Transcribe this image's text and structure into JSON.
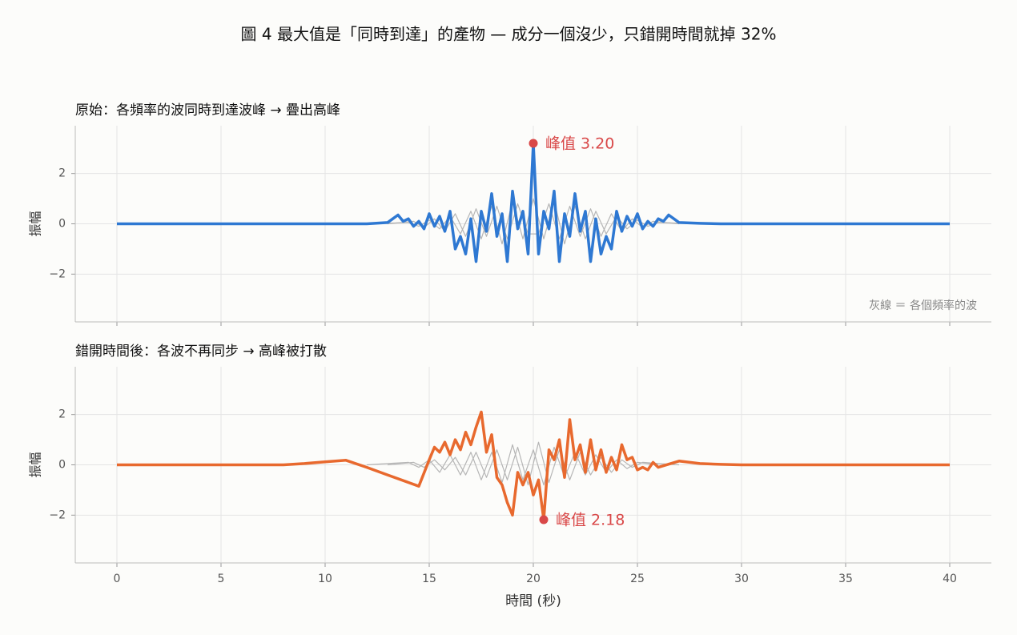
{
  "title": "圖 4  最大值是「同時到達」的產物 — 成分一個沒少，只錯開時間就掉 32%",
  "chart_data": [
    {
      "type": "line",
      "title": "原始：各頻率的波同時到達波峰 → 疊出高峰",
      "ylabel": "振幅",
      "xlim": [
        -2,
        42
      ],
      "ylim": [
        -3.9,
        3.9
      ],
      "xticks": [
        0,
        5,
        10,
        15,
        20,
        25,
        30,
        35,
        40
      ],
      "yticks": [
        {
          "value": -2,
          "label": "−2"
        },
        0,
        2
      ],
      "grid": true,
      "series": [
        {
          "color": "#b5b5b5",
          "x": [
            12,
            14,
            14.5,
            15,
            15.5,
            16,
            16.5,
            17,
            17.5,
            18,
            18.5,
            19,
            19.5,
            20,
            20.5,
            21,
            21.5,
            22,
            22.5,
            23,
            23.5,
            24,
            24.5,
            25,
            25.5,
            26,
            28
          ],
          "values": [
            0,
            0.05,
            -0.1,
            0.15,
            -0.2,
            0.3,
            -0.4,
            0.5,
            -0.6,
            0.7,
            -0.8,
            0.9,
            -0.6,
            1.0,
            -0.6,
            0.9,
            -0.8,
            0.7,
            -0.6,
            0.5,
            -0.4,
            0.3,
            -0.2,
            0.15,
            -0.1,
            0.05,
            0
          ]
        },
        {
          "color": "#b5b5b5",
          "x": [
            13,
            14.25,
            14.75,
            15.25,
            15.75,
            16.25,
            16.75,
            17.25,
            17.75,
            18.25,
            18.75,
            19.25,
            19.75,
            20.25,
            20.75,
            21.25,
            21.75,
            22.25,
            22.75,
            23.25,
            23.75,
            24.25,
            24.75,
            25.25,
            25.75,
            27
          ],
          "values": [
            0,
            0.1,
            -0.15,
            0.2,
            -0.3,
            0.4,
            -0.5,
            0.6,
            -0.5,
            0.7,
            -0.6,
            0.8,
            -0.4,
            -0.4,
            0.8,
            -0.6,
            0.7,
            -0.5,
            0.6,
            -0.5,
            0.4,
            -0.3,
            0.2,
            -0.15,
            0.1,
            0
          ]
        },
        {
          "color": "#2e78d2",
          "x": [
            0,
            5,
            10,
            12,
            13,
            13.25,
            13.5,
            13.75,
            14,
            14.25,
            14.5,
            14.75,
            15,
            15.25,
            15.5,
            15.75,
            16,
            16.25,
            16.5,
            16.75,
            17,
            17.25,
            17.5,
            17.75,
            18,
            18.25,
            18.5,
            18.75,
            19,
            19.25,
            19.5,
            19.75,
            20,
            20.25,
            20.5,
            20.75,
            21,
            21.25,
            21.5,
            21.75,
            22,
            22.25,
            22.5,
            22.75,
            23,
            23.25,
            23.5,
            23.75,
            24,
            24.25,
            24.5,
            24.75,
            25,
            25.25,
            25.5,
            25.75,
            26,
            26.25,
            26.5,
            26.75,
            27,
            28,
            29,
            30,
            35,
            40
          ],
          "values": [
            0,
            0,
            0,
            0,
            0.05,
            0.2,
            0.35,
            0.1,
            0.2,
            -0.1,
            0.1,
            -0.2,
            0.4,
            -0.1,
            0.3,
            -0.3,
            0.5,
            -1.0,
            -0.5,
            -1.2,
            0.2,
            -1.5,
            0.5,
            -0.3,
            1.2,
            -0.5,
            0.4,
            -1.5,
            1.3,
            -0.2,
            0.5,
            -1.2,
            3.2,
            -1.2,
            0.5,
            -0.2,
            1.3,
            -1.5,
            0.4,
            -0.5,
            1.2,
            -0.3,
            0.5,
            -1.5,
            0.2,
            -1.2,
            -0.5,
            -1.0,
            0.5,
            -0.3,
            0.3,
            -0.1,
            0.4,
            -0.2,
            0.1,
            -0.1,
            0.2,
            0.1,
            0.35,
            0.2,
            0.05,
            0.02,
            0,
            0,
            0,
            0
          ]
        }
      ],
      "annotations": [
        {
          "text": "峰值 3.20",
          "x": 20,
          "y": 3.2,
          "color": "#d94848"
        },
        {
          "text": "灰線 ＝ 各個頻率的波"
        }
      ]
    },
    {
      "type": "line",
      "title": "錯開時間後：各波不再同步 → 高峰被打散",
      "ylabel": "振幅",
      "xlabel": "時間 (秒)",
      "xlim": [
        -2,
        42
      ],
      "ylim": [
        -3.9,
        3.9
      ],
      "xticks": [
        0,
        5,
        10,
        15,
        20,
        25,
        30,
        35,
        40
      ],
      "yticks": [
        {
          "value": -2,
          "label": "−2"
        },
        0,
        2
      ],
      "grid": true,
      "series": [
        {
          "color": "#b5b5b5",
          "x": [
            12,
            13,
            14,
            14.5,
            15,
            15.5,
            16,
            16.5,
            17,
            17.5,
            18,
            18.5,
            19,
            19.5,
            20,
            20.5,
            21,
            21.5,
            22,
            22.5,
            23,
            23.5,
            24,
            24.5,
            25,
            26
          ],
          "values": [
            0,
            0.05,
            0.1,
            -0.1,
            0.2,
            -0.3,
            0.4,
            -0.4,
            0.5,
            -0.6,
            0.5,
            -0.7,
            0.8,
            -0.6,
            0.6,
            -0.8,
            0.7,
            -0.5,
            0.5,
            -0.4,
            0.4,
            -0.3,
            0.2,
            -0.15,
            0.1,
            0
          ]
        },
        {
          "color": "#b5b5b5",
          "x": [
            13,
            14.25,
            14.75,
            15.25,
            15.75,
            16.25,
            16.75,
            17.25,
            17.75,
            18.25,
            18.75,
            19.25,
            19.75,
            20.25,
            20.75,
            21.25,
            21.75,
            22.25,
            22.75,
            23.25,
            23.75,
            24.25,
            24.75,
            25.25,
            26,
            27
          ],
          "values": [
            0,
            0.1,
            -0.1,
            0.2,
            -0.2,
            0.3,
            -0.4,
            0.5,
            -0.5,
            0.6,
            -0.6,
            0.7,
            -0.8,
            0.9,
            -0.7,
            0.6,
            -0.6,
            0.5,
            -0.4,
            0.3,
            -0.3,
            0.2,
            -0.1,
            0.1,
            0.05,
            0
          ]
        },
        {
          "color": "#e8692e",
          "x": [
            0,
            5,
            8,
            9,
            10,
            11,
            12,
            13,
            14,
            14.5,
            15,
            15.25,
            15.5,
            15.75,
            16,
            16.25,
            16.5,
            16.75,
            17,
            17.25,
            17.5,
            17.75,
            18,
            18.25,
            18.5,
            18.75,
            19,
            19.25,
            19.5,
            19.75,
            20,
            20.25,
            20.5,
            20.75,
            21,
            21.25,
            21.5,
            21.75,
            22,
            22.25,
            22.5,
            22.75,
            23,
            23.25,
            23.5,
            23.75,
            24,
            24.25,
            24.5,
            24.75,
            25,
            25.25,
            25.5,
            25.75,
            26,
            27,
            28,
            29,
            30,
            35,
            40
          ],
          "values": [
            0,
            0,
            0,
            0.05,
            0.12,
            0.18,
            -0.1,
            -0.4,
            -0.7,
            -0.85,
            0.2,
            0.7,
            0.5,
            0.9,
            0.4,
            1.0,
            0.6,
            1.3,
            0.8,
            1.5,
            2.1,
            0.5,
            1.2,
            -0.5,
            -0.8,
            -1.5,
            -2.0,
            -0.3,
            -0.8,
            -0.3,
            -1.2,
            -0.6,
            -2.18,
            0.6,
            0.2,
            1.0,
            -0.5,
            1.8,
            0.2,
            0.8,
            -0.3,
            1.0,
            -0.2,
            0.6,
            -0.3,
            0.3,
            -0.2,
            0.8,
            0.2,
            0.3,
            -0.2,
            -0.1,
            -0.2,
            0.1,
            -0.1,
            0.15,
            0.05,
            0.02,
            0,
            0,
            0
          ]
        }
      ],
      "annotations": [
        {
          "text": "峰值 2.18",
          "x": 20.5,
          "y": -2.18,
          "color": "#d94848"
        }
      ]
    }
  ]
}
